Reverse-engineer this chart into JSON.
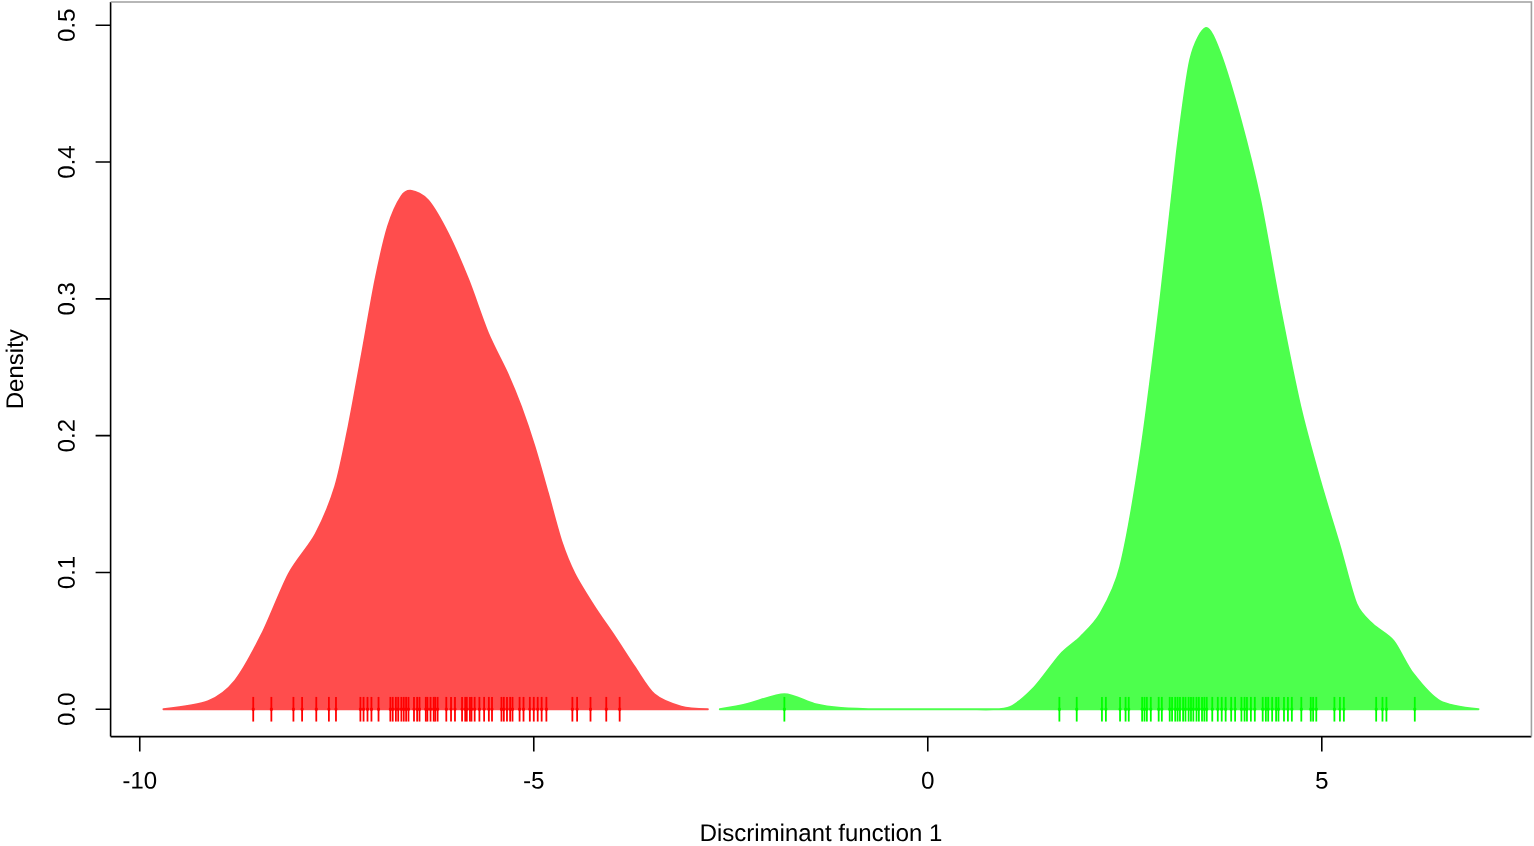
{
  "chart_data": {
    "type": "area",
    "xlabel": "Discriminant function 1",
    "ylabel": "Density",
    "xlim": [
      -10.37,
      7.66
    ],
    "ylim": [
      -0.02,
      0.517
    ],
    "xticks": [
      -10,
      -5,
      0,
      5
    ],
    "yticks": [
      {
        "value": 0,
        "label": "0.0"
      },
      {
        "value": 0.1,
        "label": "0.1"
      },
      {
        "value": 0.2,
        "label": "0.2"
      },
      {
        "value": 0.3,
        "label": "0.3"
      },
      {
        "value": 0.4,
        "label": "0.4"
      },
      {
        "value": 0.5,
        "label": "0.5"
      }
    ],
    "series": [
      {
        "color": "#ff4d4d",
        "x": [
          -9.7,
          -9.13,
          -8.79,
          -8.45,
          -8.11,
          -7.77,
          -7.52,
          -7.35,
          -7.18,
          -7.01,
          -6.85,
          -6.68,
          -6.55,
          -6.34,
          -6.09,
          -5.83,
          -5.58,
          -5.33,
          -5.16,
          -4.99,
          -4.82,
          -4.65,
          -4.48,
          -4.23,
          -3.97,
          -3.72,
          -3.47,
          -3.13,
          -2.79
        ],
        "values": [
          0,
          0.006,
          0.021,
          0.055,
          0.099,
          0.128,
          0.163,
          0.207,
          0.26,
          0.314,
          0.353,
          0.375,
          0.379,
          0.372,
          0.348,
          0.314,
          0.275,
          0.245,
          0.221,
          0.192,
          0.158,
          0.123,
          0.099,
          0.075,
          0.053,
          0.031,
          0.011,
          0.002,
          0
        ]
      },
      {
        "color": "#4dff4d",
        "x": [
          -2.64,
          -2.29,
          -1.82,
          -1.44,
          -1.1,
          -0.6,
          0.42,
          1.01,
          1.35,
          1.68,
          1.94,
          2.19,
          2.44,
          2.7,
          2.95,
          3.16,
          3.33,
          3.53,
          3.71,
          3.97,
          4.22,
          4.47,
          4.73,
          4.98,
          5.23,
          5.44,
          5.65,
          5.91,
          6.16,
          6.5,
          6.99
        ],
        "values": [
          0,
          0.004,
          0.011,
          0.004,
          0.001,
          0,
          0,
          0.001,
          0.016,
          0.04,
          0.053,
          0.07,
          0.104,
          0.187,
          0.299,
          0.407,
          0.475,
          0.498,
          0.48,
          0.431,
          0.372,
          0.294,
          0.221,
          0.167,
          0.119,
          0.077,
          0.062,
          0.05,
          0.026,
          0.006,
          0
        ]
      },
      {
        "type": "scatter",
        "color": "#ff0000",
        "marker": "square",
        "x": [
          -8.56,
          -8.33,
          -8.05,
          -7.94,
          -7.76,
          -7.6,
          -7.51,
          -7.2,
          -7.16,
          -7.11,
          -7.06,
          -6.97,
          -6.82,
          -6.79,
          -6.75,
          -6.72,
          -6.68,
          -6.65,
          -6.62,
          -6.59,
          -6.52,
          -6.48,
          -6.45,
          -6.37,
          -6.35,
          -6.31,
          -6.27,
          -6.25,
          -6.22,
          -6.11,
          -6.05,
          -6.0,
          -5.91,
          -5.87,
          -5.85,
          -5.81,
          -5.79,
          -5.75,
          -5.69,
          -5.63,
          -5.57,
          -5.53,
          -5.41,
          -5.38,
          -5.34,
          -5.3,
          -5.27,
          -5.18,
          -5.13,
          -5.05,
          -5.0,
          -4.95,
          -4.9,
          -4.84,
          -4.51,
          -4.45,
          -4.28,
          -4.08,
          -3.91
        ],
        "values": [
          0,
          0,
          0,
          0,
          0,
          0,
          0,
          0,
          0,
          0,
          0,
          0,
          0,
          0,
          0,
          0,
          0,
          0,
          0,
          0,
          0,
          0,
          0,
          0,
          0,
          0,
          0,
          0,
          0,
          0,
          0,
          0,
          0,
          0,
          0,
          0,
          0,
          0,
          0,
          0,
          0,
          0,
          0,
          0,
          0,
          0,
          0,
          0,
          0,
          0,
          0,
          0,
          0,
          0,
          0,
          0,
          0,
          0,
          0
        ],
        "errors": [
          0.009,
          0.009,
          0.009,
          0.009,
          0.009,
          0.009,
          0.009,
          0.009,
          0.009,
          0.009,
          0.009,
          0.009,
          0.009,
          0.009,
          0.009,
          0.009,
          0.009,
          0.009,
          0.009,
          0.009,
          0.009,
          0.009,
          0.009,
          0.009,
          0.009,
          0.009,
          0.009,
          0.009,
          0.009,
          0.009,
          0.009,
          0.009,
          0.009,
          0.009,
          0.009,
          0.009,
          0.009,
          0.009,
          0.009,
          0.009,
          0.009,
          0.009,
          0.009,
          0.009,
          0.009,
          0.009,
          0.009,
          0.009,
          0.009,
          0.009,
          0.009,
          0.009,
          0.009,
          0.009,
          0.009,
          0.009,
          0.009,
          0.009,
          0.009
        ]
      },
      {
        "type": "scatter",
        "color": "#00ff00",
        "marker": "square",
        "x": [
          -1.82,
          1.67,
          1.89,
          2.21,
          2.26,
          2.44,
          2.51,
          2.55,
          2.72,
          2.75,
          2.78,
          2.83,
          2.93,
          2.97,
          3.07,
          3.1,
          3.14,
          3.17,
          3.2,
          3.24,
          3.27,
          3.31,
          3.34,
          3.37,
          3.41,
          3.44,
          3.48,
          3.51,
          3.54,
          3.61,
          3.68,
          3.73,
          3.78,
          3.85,
          3.9,
          3.98,
          4.02,
          4.05,
          4.1,
          4.15,
          4.25,
          4.29,
          4.32,
          4.37,
          4.42,
          4.45,
          4.52,
          4.57,
          4.62,
          4.74,
          4.86,
          4.89,
          4.93,
          5.16,
          5.23,
          5.28,
          5.69,
          5.77,
          5.82,
          6.18
        ],
        "values": [
          0,
          0,
          0,
          0,
          0,
          0,
          0,
          0,
          0,
          0,
          0,
          0,
          0,
          0,
          0,
          0,
          0,
          0,
          0,
          0,
          0,
          0,
          0,
          0,
          0,
          0,
          0,
          0,
          0,
          0,
          0,
          0,
          0,
          0,
          0,
          0,
          0,
          0,
          0,
          0,
          0,
          0,
          0,
          0,
          0,
          0,
          0,
          0,
          0,
          0,
          0,
          0,
          0,
          0,
          0,
          0,
          0,
          0,
          0,
          0
        ],
        "errors": [
          0.009,
          0.009,
          0.009,
          0.009,
          0.009,
          0.009,
          0.009,
          0.009,
          0.009,
          0.009,
          0.009,
          0.009,
          0.009,
          0.009,
          0.009,
          0.009,
          0.009,
          0.009,
          0.009,
          0.009,
          0.009,
          0.009,
          0.009,
          0.009,
          0.009,
          0.009,
          0.009,
          0.009,
          0.009,
          0.009,
          0.009,
          0.009,
          0.009,
          0.009,
          0.009,
          0.009,
          0.009,
          0.009,
          0.009,
          0.009,
          0.009,
          0.009,
          0.009,
          0.009,
          0.009,
          0.009,
          0.009,
          0.009,
          0.009,
          0.009,
          0.009,
          0.009,
          0.009,
          0.009,
          0.009,
          0.009,
          0.009,
          0.009,
          0.009,
          0.009
        ]
      }
    ]
  }
}
